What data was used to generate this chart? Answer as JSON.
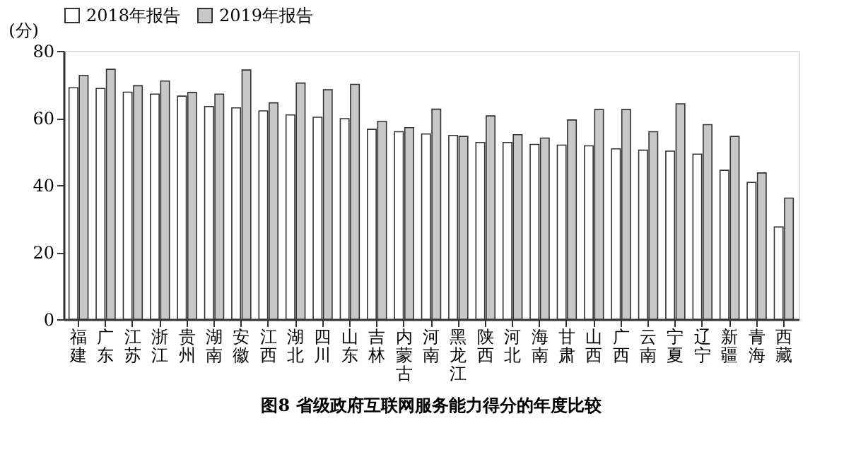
{
  "chart_data": {
    "type": "bar",
    "title": "图8  省级政府互联网服务能力得分的年度比较",
    "ylabel": "(分)",
    "categories": [
      "福建",
      "广东",
      "江苏",
      "浙江",
      "贵州",
      "湖南",
      "安徽",
      "江西",
      "湖北",
      "四川",
      "山东",
      "吉林",
      "内蒙古",
      "河南",
      "黑龙江",
      "陕西",
      "河北",
      "海南",
      "甘肃",
      "山西",
      "广西",
      "云南",
      "宁夏",
      "辽宁",
      "新疆",
      "青海",
      "西藏"
    ],
    "series": [
      {
        "name": "2018年报告",
        "color": "#ffffff",
        "values": [
          69.0,
          68.8,
          67.7,
          67.1,
          66.5,
          63.4,
          63.0,
          62.1,
          60.9,
          60.2,
          59.8,
          56.6,
          55.9,
          55.2,
          54.8,
          52.7,
          52.7,
          52.1,
          51.9,
          51.7,
          50.8,
          50.4,
          50.1,
          49.2,
          44.4,
          40.8,
          27.5
        ]
      },
      {
        "name": "2019年报告",
        "color": "#c8c8c8",
        "values": [
          72.7,
          74.5,
          69.6,
          71.0,
          67.6,
          67.1,
          74.3,
          64.5,
          70.4,
          68.4,
          70.0,
          59.0,
          57.1,
          62.6,
          54.5,
          60.6,
          55.0,
          54.0,
          59.4,
          62.5,
          62.5,
          55.9,
          64.2,
          58.0,
          54.5,
          43.6,
          36.1
        ]
      }
    ],
    "ylim": [
      0,
      80
    ],
    "yticks": [
      0,
      20,
      40,
      60,
      80
    ],
    "grid": false,
    "legend": "top"
  }
}
